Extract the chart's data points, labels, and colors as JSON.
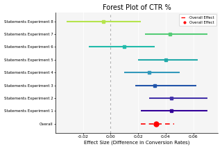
{
  "title": "Forest Plot of CTR %",
  "xlabel": "Effect Size (Difference in Conversion Rates)",
  "experiments": [
    "Statements Experiment 8",
    "Statements Experiment 7",
    "Statements Experiment 6",
    "Statements Experiment 5",
    "Statements Experiment 4",
    "Statements Experiment 3",
    "Statements Experiment 2",
    "Statements Experiment 1",
    "Overall"
  ],
  "effects": [
    -0.005,
    0.043,
    0.01,
    0.04,
    0.028,
    0.032,
    0.044,
    0.044,
    0.033
  ],
  "ci_low": [
    -0.032,
    0.025,
    -0.016,
    0.02,
    0.01,
    0.018,
    0.028,
    0.022,
    0.022
  ],
  "ci_high": [
    0.022,
    0.07,
    0.032,
    0.063,
    0.05,
    0.062,
    0.07,
    0.07,
    0.046
  ],
  "colors": [
    "#b5e44d",
    "#55cc77",
    "#22bbaa",
    "#22aaaa",
    "#3399bb",
    "#2255aa",
    "#4433aa",
    "#330099",
    "#cc0000"
  ],
  "overall_effect": 0.033,
  "overall_ci_low": 0.022,
  "overall_ci_high": 0.046,
  "xlim": [
    -0.04,
    0.078
  ],
  "xticks": [
    -0.02,
    0.0,
    0.02,
    0.04,
    0.06
  ],
  "bg_color": "#ffffff",
  "panel_color": "#f5f5f5",
  "vline_x": 0.0
}
